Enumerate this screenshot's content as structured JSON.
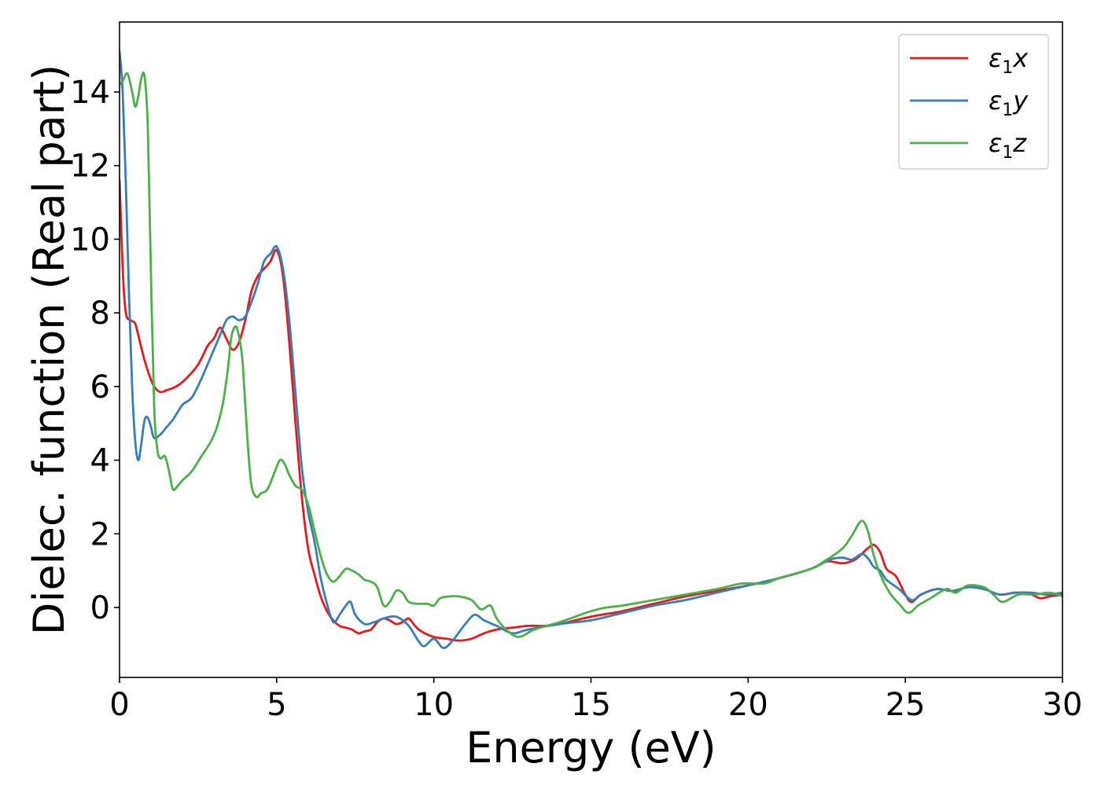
{
  "chart_data": {
    "type": "line",
    "xlabel": "Energy (eV)",
    "ylabel": "Dielec. function (Real part)",
    "xlim": [
      0,
      30
    ],
    "ylim": [
      -1.9,
      15.9
    ],
    "xticks": [
      0,
      5,
      10,
      15,
      20,
      25,
      30
    ],
    "yticks": [
      0,
      2,
      4,
      6,
      8,
      10,
      12,
      14
    ],
    "grid": false,
    "legend_position": "top-right",
    "series": [
      {
        "name": "ε1x",
        "label_main": "ε",
        "label_sub": "1",
        "label_tail": "x",
        "color": "#e41a1c",
        "points": [
          [
            0,
            11.6
          ],
          [
            0.1,
            9.2
          ],
          [
            0.2,
            8.0
          ],
          [
            0.35,
            7.8
          ],
          [
            0.5,
            7.7
          ],
          [
            0.65,
            7.2
          ],
          [
            0.8,
            6.7
          ],
          [
            0.95,
            6.3
          ],
          [
            1.1,
            6.0
          ],
          [
            1.3,
            5.85
          ],
          [
            1.5,
            5.9
          ],
          [
            1.8,
            6.0
          ],
          [
            2.1,
            6.2
          ],
          [
            2.5,
            6.6
          ],
          [
            2.8,
            7.1
          ],
          [
            3.0,
            7.3
          ],
          [
            3.2,
            7.6
          ],
          [
            3.4,
            7.3
          ],
          [
            3.6,
            7.0
          ],
          [
            3.8,
            7.2
          ],
          [
            4.0,
            7.8
          ],
          [
            4.2,
            8.6
          ],
          [
            4.4,
            9.0
          ],
          [
            4.6,
            9.2
          ],
          [
            4.8,
            9.4
          ],
          [
            5.0,
            9.7
          ],
          [
            5.2,
            9.0
          ],
          [
            5.4,
            7.2
          ],
          [
            5.6,
            5.0
          ],
          [
            5.8,
            3.0
          ],
          [
            6.0,
            1.6
          ],
          [
            6.2,
            0.9
          ],
          [
            6.4,
            0.3
          ],
          [
            6.6,
            -0.1
          ],
          [
            6.8,
            -0.35
          ],
          [
            7.0,
            -0.5
          ],
          [
            7.2,
            -0.55
          ],
          [
            7.4,
            -0.6
          ],
          [
            7.6,
            -0.7
          ],
          [
            7.8,
            -0.65
          ],
          [
            8.0,
            -0.6
          ],
          [
            8.2,
            -0.4
          ],
          [
            8.4,
            -0.3
          ],
          [
            8.6,
            -0.35
          ],
          [
            8.8,
            -0.45
          ],
          [
            9.0,
            -0.4
          ],
          [
            9.2,
            -0.3
          ],
          [
            9.4,
            -0.5
          ],
          [
            9.6,
            -0.65
          ],
          [
            10.0,
            -0.8
          ],
          [
            10.4,
            -0.85
          ],
          [
            10.8,
            -0.9
          ],
          [
            11.2,
            -0.85
          ],
          [
            11.6,
            -0.7
          ],
          [
            12.0,
            -0.6
          ],
          [
            12.5,
            -0.55
          ],
          [
            13.0,
            -0.5
          ],
          [
            13.5,
            -0.5
          ],
          [
            14.0,
            -0.45
          ],
          [
            15.0,
            -0.25
          ],
          [
            16.0,
            -0.1
          ],
          [
            17.0,
            0.1
          ],
          [
            18.0,
            0.3
          ],
          [
            19.0,
            0.45
          ],
          [
            20.0,
            0.6
          ],
          [
            21.0,
            0.8
          ],
          [
            22.0,
            1.05
          ],
          [
            22.5,
            1.25
          ],
          [
            23.0,
            1.2
          ],
          [
            23.4,
            1.3
          ],
          [
            23.8,
            1.6
          ],
          [
            24.0,
            1.7
          ],
          [
            24.2,
            1.5
          ],
          [
            24.4,
            1.05
          ],
          [
            24.7,
            0.85
          ],
          [
            25.0,
            0.35
          ],
          [
            25.2,
            0.15
          ],
          [
            25.5,
            0.35
          ],
          [
            26.0,
            0.5
          ],
          [
            26.5,
            0.45
          ],
          [
            27.0,
            0.55
          ],
          [
            27.5,
            0.5
          ],
          [
            28.0,
            0.35
          ],
          [
            28.5,
            0.4
          ],
          [
            29.0,
            0.35
          ],
          [
            29.3,
            0.25
          ],
          [
            29.6,
            0.3
          ],
          [
            30.0,
            0.35
          ]
        ]
      },
      {
        "name": "ε1y",
        "label_main": "ε",
        "label_sub": "1",
        "label_tail": "y",
        "color": "#377eb8",
        "points": [
          [
            0,
            15.1
          ],
          [
            0.1,
            14.0
          ],
          [
            0.2,
            11.5
          ],
          [
            0.3,
            8.5
          ],
          [
            0.4,
            6.0
          ],
          [
            0.5,
            4.5
          ],
          [
            0.6,
            4.0
          ],
          [
            0.7,
            4.5
          ],
          [
            0.8,
            5.1
          ],
          [
            0.9,
            5.15
          ],
          [
            1.0,
            4.9
          ],
          [
            1.1,
            4.6
          ],
          [
            1.3,
            4.7
          ],
          [
            1.5,
            4.9
          ],
          [
            1.7,
            5.1
          ],
          [
            2.0,
            5.5
          ],
          [
            2.3,
            5.7
          ],
          [
            2.6,
            6.2
          ],
          [
            2.9,
            6.8
          ],
          [
            3.2,
            7.4
          ],
          [
            3.4,
            7.8
          ],
          [
            3.6,
            7.9
          ],
          [
            3.8,
            7.8
          ],
          [
            4.0,
            7.9
          ],
          [
            4.2,
            8.3
          ],
          [
            4.4,
            8.8
          ],
          [
            4.6,
            9.4
          ],
          [
            4.8,
            9.6
          ],
          [
            5.0,
            9.8
          ],
          [
            5.2,
            9.2
          ],
          [
            5.4,
            7.8
          ],
          [
            5.6,
            5.8
          ],
          [
            5.8,
            3.8
          ],
          [
            6.0,
            2.6
          ],
          [
            6.2,
            1.8
          ],
          [
            6.4,
            0.8
          ],
          [
            6.6,
            0.1
          ],
          [
            6.8,
            -0.4
          ],
          [
            7.0,
            -0.2
          ],
          [
            7.2,
            0.05
          ],
          [
            7.35,
            0.15
          ],
          [
            7.5,
            -0.2
          ],
          [
            7.8,
            -0.45
          ],
          [
            8.1,
            -0.4
          ],
          [
            8.4,
            -0.3
          ],
          [
            8.8,
            -0.25
          ],
          [
            9.2,
            -0.5
          ],
          [
            9.5,
            -0.9
          ],
          [
            9.7,
            -1.05
          ],
          [
            10.0,
            -0.85
          ],
          [
            10.3,
            -1.1
          ],
          [
            10.6,
            -0.9
          ],
          [
            11.0,
            -0.45
          ],
          [
            11.3,
            -0.2
          ],
          [
            11.6,
            -0.35
          ],
          [
            12.0,
            -0.5
          ],
          [
            12.5,
            -0.7
          ],
          [
            13.0,
            -0.6
          ],
          [
            14.0,
            -0.45
          ],
          [
            15.0,
            -0.35
          ],
          [
            16.0,
            -0.15
          ],
          [
            17.0,
            0.05
          ],
          [
            18.0,
            0.2
          ],
          [
            19.0,
            0.4
          ],
          [
            20.0,
            0.6
          ],
          [
            21.0,
            0.8
          ],
          [
            22.0,
            1.05
          ],
          [
            22.6,
            1.3
          ],
          [
            23.0,
            1.35
          ],
          [
            23.3,
            1.3
          ],
          [
            23.6,
            1.45
          ],
          [
            23.8,
            1.35
          ],
          [
            24.0,
            1.1
          ],
          [
            24.2,
            1.0
          ],
          [
            24.4,
            0.75
          ],
          [
            24.8,
            0.5
          ],
          [
            25.2,
            0.2
          ],
          [
            25.5,
            0.35
          ],
          [
            26.0,
            0.5
          ],
          [
            26.5,
            0.45
          ],
          [
            27.0,
            0.55
          ],
          [
            27.5,
            0.5
          ],
          [
            28.0,
            0.35
          ],
          [
            28.5,
            0.4
          ],
          [
            29.0,
            0.4
          ],
          [
            29.5,
            0.35
          ],
          [
            30.0,
            0.4
          ]
        ]
      },
      {
        "name": "ε1z",
        "label_main": "ε",
        "label_sub": "1",
        "label_tail": "z",
        "color": "#4daf4a",
        "points": [
          [
            0,
            14.2
          ],
          [
            0.1,
            14.3
          ],
          [
            0.25,
            14.5
          ],
          [
            0.4,
            14.0
          ],
          [
            0.5,
            13.6
          ],
          [
            0.6,
            13.9
          ],
          [
            0.7,
            14.4
          ],
          [
            0.8,
            14.4
          ],
          [
            0.9,
            13.0
          ],
          [
            1.0,
            9.0
          ],
          [
            1.1,
            5.5
          ],
          [
            1.2,
            4.3
          ],
          [
            1.3,
            4.05
          ],
          [
            1.45,
            4.1
          ],
          [
            1.6,
            3.6
          ],
          [
            1.7,
            3.2
          ],
          [
            1.85,
            3.3
          ],
          [
            2.0,
            3.45
          ],
          [
            2.3,
            3.7
          ],
          [
            2.6,
            4.1
          ],
          [
            2.9,
            4.5
          ],
          [
            3.1,
            4.9
          ],
          [
            3.3,
            5.6
          ],
          [
            3.45,
            6.5
          ],
          [
            3.55,
            7.3
          ],
          [
            3.65,
            7.6
          ],
          [
            3.75,
            7.55
          ],
          [
            3.9,
            6.8
          ],
          [
            4.0,
            5.5
          ],
          [
            4.1,
            4.2
          ],
          [
            4.2,
            3.3
          ],
          [
            4.35,
            3.0
          ],
          [
            4.5,
            3.1
          ],
          [
            4.7,
            3.2
          ],
          [
            4.9,
            3.6
          ],
          [
            5.1,
            4.0
          ],
          [
            5.25,
            3.9
          ],
          [
            5.4,
            3.6
          ],
          [
            5.6,
            3.3
          ],
          [
            5.8,
            3.2
          ],
          [
            6.0,
            2.8
          ],
          [
            6.2,
            2.1
          ],
          [
            6.4,
            1.4
          ],
          [
            6.6,
            0.9
          ],
          [
            6.8,
            0.7
          ],
          [
            7.0,
            0.85
          ],
          [
            7.2,
            1.05
          ],
          [
            7.4,
            1.0
          ],
          [
            7.6,
            0.9
          ],
          [
            7.8,
            0.75
          ],
          [
            8.0,
            0.7
          ],
          [
            8.2,
            0.55
          ],
          [
            8.4,
            0.05
          ],
          [
            8.6,
            0.15
          ],
          [
            8.8,
            0.45
          ],
          [
            9.0,
            0.4
          ],
          [
            9.2,
            0.15
          ],
          [
            9.5,
            0.1
          ],
          [
            9.8,
            0.1
          ],
          [
            10.0,
            0.05
          ],
          [
            10.2,
            0.25
          ],
          [
            10.5,
            0.3
          ],
          [
            10.8,
            0.3
          ],
          [
            11.2,
            0.2
          ],
          [
            11.5,
            -0.05
          ],
          [
            11.8,
            0.05
          ],
          [
            12.0,
            -0.3
          ],
          [
            12.3,
            -0.6
          ],
          [
            12.7,
            -0.8
          ],
          [
            13.2,
            -0.6
          ],
          [
            14.0,
            -0.4
          ],
          [
            14.5,
            -0.25
          ],
          [
            15.0,
            -0.1
          ],
          [
            15.5,
            0.0
          ],
          [
            16.0,
            0.05
          ],
          [
            17.0,
            0.2
          ],
          [
            18.0,
            0.35
          ],
          [
            19.0,
            0.5
          ],
          [
            19.8,
            0.65
          ],
          [
            20.5,
            0.65
          ],
          [
            21.0,
            0.8
          ],
          [
            22.0,
            1.05
          ],
          [
            22.5,
            1.3
          ],
          [
            23.0,
            1.6
          ],
          [
            23.3,
            1.95
          ],
          [
            23.6,
            2.35
          ],
          [
            23.8,
            2.1
          ],
          [
            24.0,
            1.4
          ],
          [
            24.2,
            0.9
          ],
          [
            24.5,
            0.4
          ],
          [
            24.8,
            0.1
          ],
          [
            25.1,
            -0.15
          ],
          [
            25.4,
            0.05
          ],
          [
            25.8,
            0.25
          ],
          [
            26.3,
            0.5
          ],
          [
            26.6,
            0.4
          ],
          [
            27.0,
            0.6
          ],
          [
            27.5,
            0.55
          ],
          [
            27.8,
            0.35
          ],
          [
            28.1,
            0.15
          ],
          [
            28.6,
            0.35
          ],
          [
            29.1,
            0.35
          ],
          [
            29.6,
            0.4
          ],
          [
            30.0,
            0.3
          ]
        ]
      }
    ]
  }
}
